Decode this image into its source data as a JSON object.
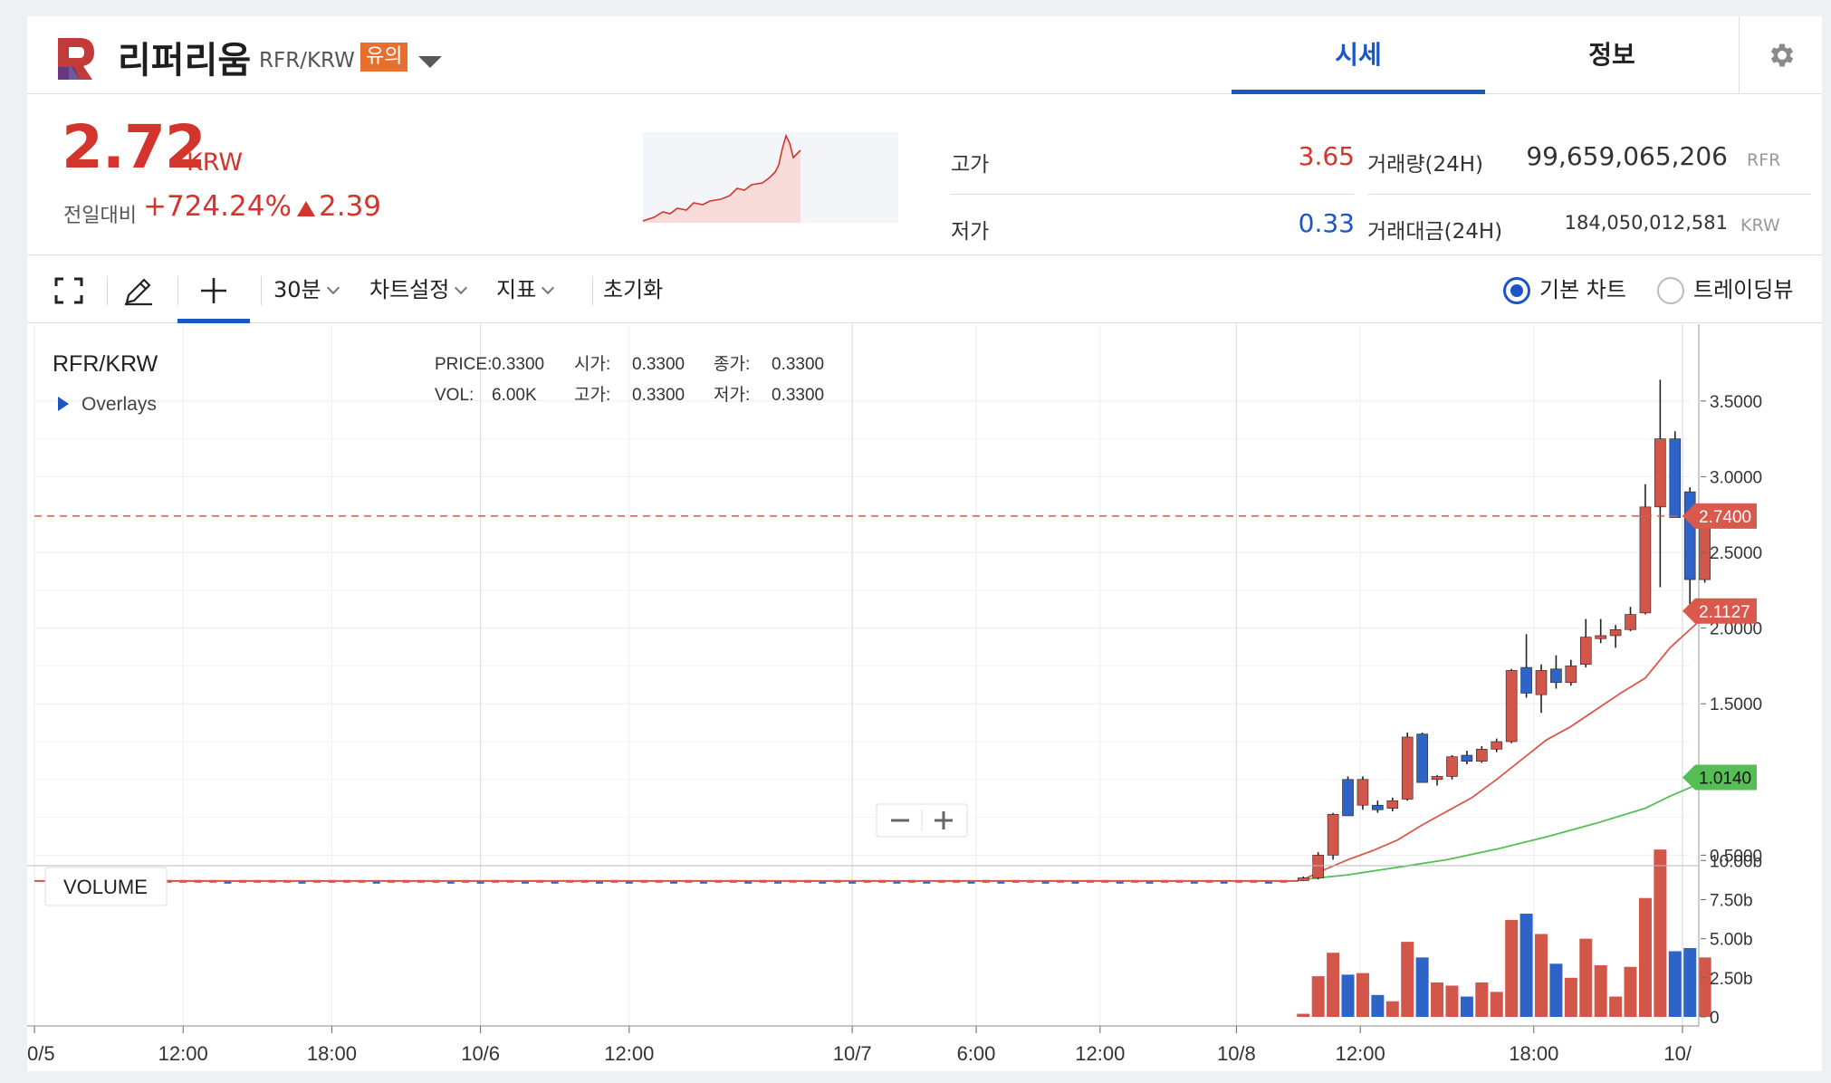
{
  "header": {
    "coin_name": "리퍼리움",
    "pair": "RFR/KRW",
    "warning_badge": "유의",
    "tabs": [
      {
        "label": "시세",
        "active": true
      },
      {
        "label": "정보",
        "active": false
      }
    ],
    "accent_color": "#1a56c4"
  },
  "summary": {
    "price": "2.72",
    "price_unit": "KRW",
    "change_label": "전일대비",
    "change_rate": "+724.24%",
    "change_amount": "2.39",
    "high_label": "고가",
    "high_value": "3.65",
    "low_label": "저가",
    "low_value": "0.33",
    "volume_label": "거래량(24H)",
    "volume_value": "99,659,065,206",
    "volume_unit": "RFR",
    "amount_label": "거래대금(24H)",
    "amount_value": "184,050,012,581",
    "amount_unit": "KRW",
    "up_color": "#d3352c",
    "down_color": "#1a56c4"
  },
  "toolbar": {
    "interval": "30분",
    "chart_settings": "차트설정",
    "indicators": "지표",
    "reset": "초기화",
    "basic_chart": "기본 차트",
    "trading_view": "트레이딩뷰",
    "basic_chart_selected": true
  },
  "chart_data": {
    "type": "candlestick",
    "symbol": "RFR/KRW",
    "overlays_label": "Overlays",
    "info": {
      "price_label": "PRICE:",
      "price": "0.3300",
      "open_label": "시가:",
      "open": "0.3300",
      "close_label": "종가:",
      "close": "0.3300",
      "vol_label": "VOL:",
      "vol": "6.00K",
      "high_label": "고가:",
      "high": "0.3300",
      "low_label": "저가:",
      "low": "0.3300"
    },
    "y_ticks": [
      "3.5000",
      "3.0000",
      "2.5000",
      "2.0000",
      "1.5000",
      "0.5000"
    ],
    "y_tick_values": [
      3.5,
      3.0,
      2.5,
      2.0,
      1.5,
      0.5
    ],
    "ylim": [
      0.3,
      3.6
    ],
    "price_tags": [
      {
        "label": "2.7400",
        "value": 2.74,
        "color": "#d9594c"
      },
      {
        "label": "2.1127",
        "value": 2.1127,
        "color": "#d9594c"
      },
      {
        "label": "1.0140",
        "value": 1.014,
        "color": "#55bf55"
      }
    ],
    "x_ticks": [
      "0/5",
      "12:00",
      "18:00",
      "10/6",
      "12:00",
      "10/7",
      "6:00",
      "12:00",
      "10/8",
      "12:00",
      "18:00",
      "10/"
    ],
    "x_tick_positions": [
      0,
      6,
      12,
      18,
      24,
      33,
      38,
      43,
      48.5,
      53.5,
      60.5,
      66.5
    ],
    "x_major": [
      false,
      false,
      false,
      true,
      false,
      true,
      false,
      false,
      true,
      false,
      false,
      true
    ],
    "volume_label": "VOLUME",
    "volume_ticks": [
      "10.00b",
      "7.50b",
      "5.00b",
      "2.50b",
      "0"
    ],
    "volume_tick_values": [
      10,
      7.5,
      5,
      2.5,
      0
    ],
    "volume_ylim": [
      0,
      11
    ],
    "candles": [
      {
        "t": 51.2,
        "o": 0.34,
        "h": 0.36,
        "l": 0.33,
        "c": 0.35,
        "v": 0.2
      },
      {
        "t": 51.8,
        "o": 0.35,
        "h": 0.52,
        "l": 0.34,
        "c": 0.5,
        "v": 2.6
      },
      {
        "t": 52.4,
        "o": 0.5,
        "h": 0.78,
        "l": 0.47,
        "c": 0.77,
        "v": 4.1
      },
      {
        "t": 53.0,
        "o": 1.0,
        "h": 1.02,
        "l": 0.76,
        "c": 0.76,
        "v": 2.7
      },
      {
        "t": 53.6,
        "o": 0.83,
        "h": 1.02,
        "l": 0.8,
        "c": 1.0,
        "v": 2.8
      },
      {
        "t": 54.2,
        "o": 0.83,
        "h": 0.86,
        "l": 0.78,
        "c": 0.8,
        "v": 1.4
      },
      {
        "t": 54.8,
        "o": 0.81,
        "h": 0.88,
        "l": 0.79,
        "c": 0.86,
        "v": 1.0
      },
      {
        "t": 55.4,
        "o": 0.87,
        "h": 1.31,
        "l": 0.86,
        "c": 1.28,
        "v": 4.8
      },
      {
        "t": 56.0,
        "o": 1.3,
        "h": 1.31,
        "l": 0.98,
        "c": 0.98,
        "v": 3.8
      },
      {
        "t": 56.6,
        "o": 1.0,
        "h": 1.03,
        "l": 0.96,
        "c": 1.02,
        "v": 2.2
      },
      {
        "t": 57.2,
        "o": 1.02,
        "h": 1.16,
        "l": 1.0,
        "c": 1.15,
        "v": 2.0
      },
      {
        "t": 57.8,
        "o": 1.16,
        "h": 1.19,
        "l": 1.1,
        "c": 1.12,
        "v": 1.3
      },
      {
        "t": 58.4,
        "o": 1.12,
        "h": 1.22,
        "l": 1.11,
        "c": 1.2,
        "v": 2.2
      },
      {
        "t": 59.0,
        "o": 1.2,
        "h": 1.27,
        "l": 1.18,
        "c": 1.25,
        "v": 1.6
      },
      {
        "t": 59.6,
        "o": 1.25,
        "h": 1.73,
        "l": 1.24,
        "c": 1.72,
        "v": 6.2
      },
      {
        "t": 60.2,
        "o": 1.74,
        "h": 1.96,
        "l": 1.54,
        "c": 1.57,
        "v": 6.6
      },
      {
        "t": 60.8,
        "o": 1.56,
        "h": 1.76,
        "l": 1.44,
        "c": 1.72,
        "v": 5.3
      },
      {
        "t": 61.4,
        "o": 1.73,
        "h": 1.82,
        "l": 1.6,
        "c": 1.64,
        "v": 3.4
      },
      {
        "t": 62.0,
        "o": 1.64,
        "h": 1.79,
        "l": 1.62,
        "c": 1.75,
        "v": 2.5
      },
      {
        "t": 62.6,
        "o": 1.76,
        "h": 2.06,
        "l": 1.74,
        "c": 1.94,
        "v": 5.0
      },
      {
        "t": 63.2,
        "o": 1.93,
        "h": 2.06,
        "l": 1.9,
        "c": 1.95,
        "v": 3.3
      },
      {
        "t": 63.8,
        "o": 1.95,
        "h": 2.02,
        "l": 1.87,
        "c": 1.99,
        "v": 1.3
      },
      {
        "t": 64.4,
        "o": 1.99,
        "h": 2.14,
        "l": 1.98,
        "c": 2.09,
        "v": 3.2
      },
      {
        "t": 65.0,
        "o": 2.1,
        "h": 2.95,
        "l": 2.09,
        "c": 2.8,
        "v": 7.6
      },
      {
        "t": 65.6,
        "o": 2.8,
        "h": 3.64,
        "l": 2.27,
        "c": 3.25,
        "v": 10.7
      },
      {
        "t": 66.2,
        "o": 3.25,
        "h": 3.3,
        "l": 2.73,
        "c": 2.73,
        "v": 4.2
      },
      {
        "t": 66.8,
        "o": 2.9,
        "h": 2.93,
        "l": 2.16,
        "c": 2.32,
        "v": 4.4
      },
      {
        "t": 67.4,
        "o": 2.32,
        "h": 2.78,
        "l": 2.3,
        "c": 2.74,
        "v": 3.8
      }
    ],
    "ma_short_color": "#d9594c",
    "ma_long_color": "#55bf55",
    "up_color": "#d3564a",
    "down_color": "#2e63c7"
  }
}
